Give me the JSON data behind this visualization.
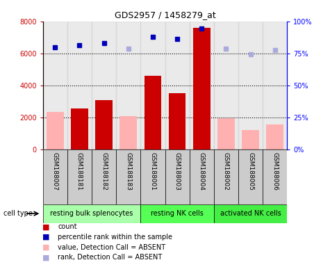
{
  "title": "GDS2957 / 1458279_at",
  "samples": [
    "GSM188007",
    "GSM188181",
    "GSM188182",
    "GSM188183",
    "GSM188001",
    "GSM188003",
    "GSM188004",
    "GSM188002",
    "GSM188005",
    "GSM188006"
  ],
  "groups": [
    {
      "label": "resting bulk splenocytes",
      "color": "#aaffaa",
      "start": 0,
      "end": 4
    },
    {
      "label": "resting NK cells",
      "color": "#55ff55",
      "start": 4,
      "end": 7
    },
    {
      "label": "activated NK cells",
      "color": "#44ee44",
      "start": 7,
      "end": 10
    }
  ],
  "count_values": [
    null,
    2550,
    3100,
    null,
    4600,
    3500,
    7600,
    null,
    null,
    null
  ],
  "absent_value": [
    2350,
    null,
    null,
    2100,
    null,
    null,
    null,
    1950,
    1200,
    1550
  ],
  "percentile_rank": [
    6400,
    6500,
    6650,
    null,
    7050,
    6900,
    7550,
    null,
    null,
    null
  ],
  "absent_rank": [
    null,
    null,
    null,
    6300,
    null,
    null,
    null,
    6300,
    5950,
    6200
  ],
  "ylim_left": [
    0,
    8000
  ],
  "ylim_right": [
    0,
    100
  ],
  "yticks_left": [
    0,
    2000,
    4000,
    6000,
    8000
  ],
  "yticks_right": [
    0,
    25,
    50,
    75,
    100
  ],
  "ytick_labels_right": [
    "0%",
    "25%",
    "50%",
    "75%",
    "100%"
  ],
  "bar_color_red": "#cc0000",
  "bar_color_pink": "#ffb0b0",
  "dot_color_blue": "#0000bb",
  "dot_color_lightblue": "#aaaadd",
  "bg_color_sample": "#cccccc",
  "legend_items": [
    {
      "color": "#cc0000",
      "label": "count"
    },
    {
      "color": "#0000bb",
      "label": "percentile rank within the sample"
    },
    {
      "color": "#ffb0b0",
      "label": "value, Detection Call = ABSENT"
    },
    {
      "color": "#aaaadd",
      "label": "rank, Detection Call = ABSENT"
    }
  ]
}
